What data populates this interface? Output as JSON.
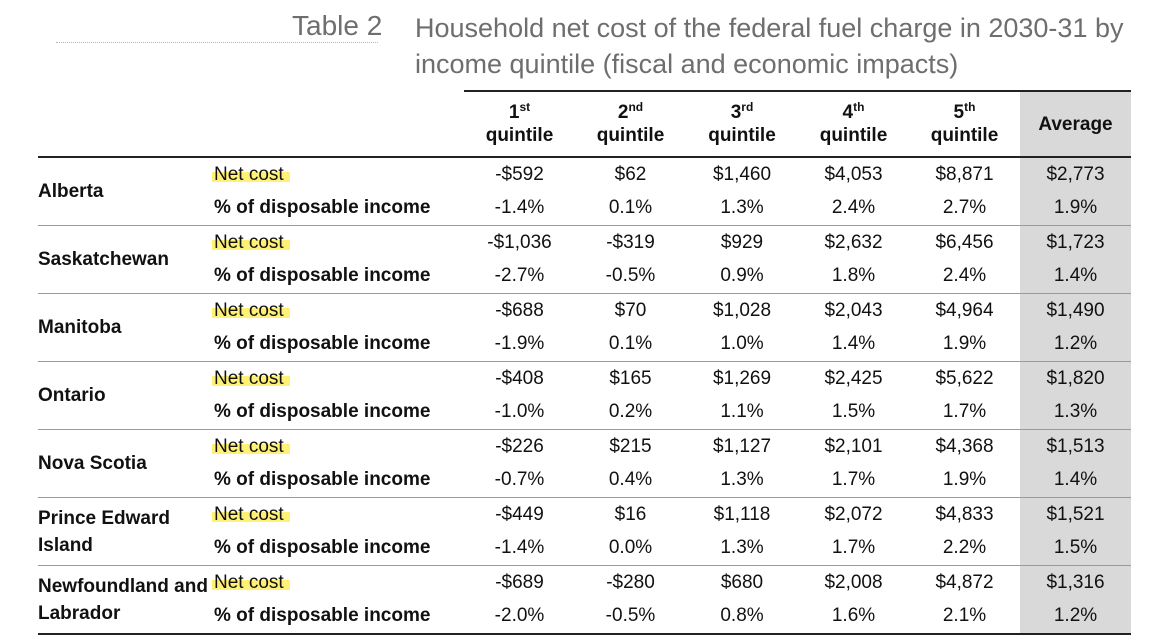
{
  "caption": {
    "label": "Table 2",
    "title": "Household net cost of the federal fuel charge in 2030-31 by income quintile (fiscal and economic impacts)"
  },
  "header": {
    "quintiles": [
      {
        "num": "1",
        "sup": "st",
        "word": "quintile"
      },
      {
        "num": "2",
        "sup": "nd",
        "word": "quintile"
      },
      {
        "num": "3",
        "sup": "rd",
        "word": "quintile"
      },
      {
        "num": "4",
        "sup": "th",
        "word": "quintile"
      },
      {
        "num": "5",
        "sup": "th",
        "word": "quintile"
      }
    ],
    "average": "Average"
  },
  "metrics": {
    "net_cost": "Net cost",
    "pct_income": "% of disposable income"
  },
  "highlight_color": "#fff176",
  "average_column_color": "#d9d9d9",
  "rows": [
    {
      "province": "Alberta",
      "net_cost": [
        "-$592",
        "$62",
        "$1,460",
        "$4,053",
        "$8,871",
        "$2,773"
      ],
      "pct": [
        "-1.4%",
        "0.1%",
        "1.3%",
        "2.4%",
        "2.7%",
        "1.9%"
      ]
    },
    {
      "province": "Saskatchewan",
      "net_cost": [
        "-$1,036",
        "-$319",
        "$929",
        "$2,632",
        "$6,456",
        "$1,723"
      ],
      "pct": [
        "-2.7%",
        "-0.5%",
        "0.9%",
        "1.8%",
        "2.4%",
        "1.4%"
      ]
    },
    {
      "province": "Manitoba",
      "net_cost": [
        "-$688",
        "$70",
        "$1,028",
        "$2,043",
        "$4,964",
        "$1,490"
      ],
      "pct": [
        "-1.9%",
        "0.1%",
        "1.0%",
        "1.4%",
        "1.9%",
        "1.2%"
      ]
    },
    {
      "province": "Ontario",
      "net_cost": [
        "-$408",
        "$165",
        "$1,269",
        "$2,425",
        "$5,622",
        "$1,820"
      ],
      "pct": [
        "-1.0%",
        "0.2%",
        "1.1%",
        "1.5%",
        "1.7%",
        "1.3%"
      ]
    },
    {
      "province": "Nova Scotia",
      "net_cost": [
        "-$226",
        "$215",
        "$1,127",
        "$2,101",
        "$4,368",
        "$1,513"
      ],
      "pct": [
        "-0.7%",
        "0.4%",
        "1.3%",
        "1.7%",
        "1.9%",
        "1.4%"
      ]
    },
    {
      "province": "Prince Edward Island",
      "net_cost": [
        "-$449",
        "$16",
        "$1,118",
        "$2,072",
        "$4,833",
        "$1,521"
      ],
      "pct": [
        "-1.4%",
        "0.0%",
        "1.3%",
        "1.7%",
        "2.2%",
        "1.5%"
      ]
    },
    {
      "province": "Newfoundland and Labrador",
      "net_cost": [
        "-$689",
        "-$280",
        "$680",
        "$2,008",
        "$4,872",
        "$1,316"
      ],
      "pct": [
        "-2.0%",
        "-0.5%",
        "0.8%",
        "1.6%",
        "2.1%",
        "1.2%"
      ]
    }
  ]
}
